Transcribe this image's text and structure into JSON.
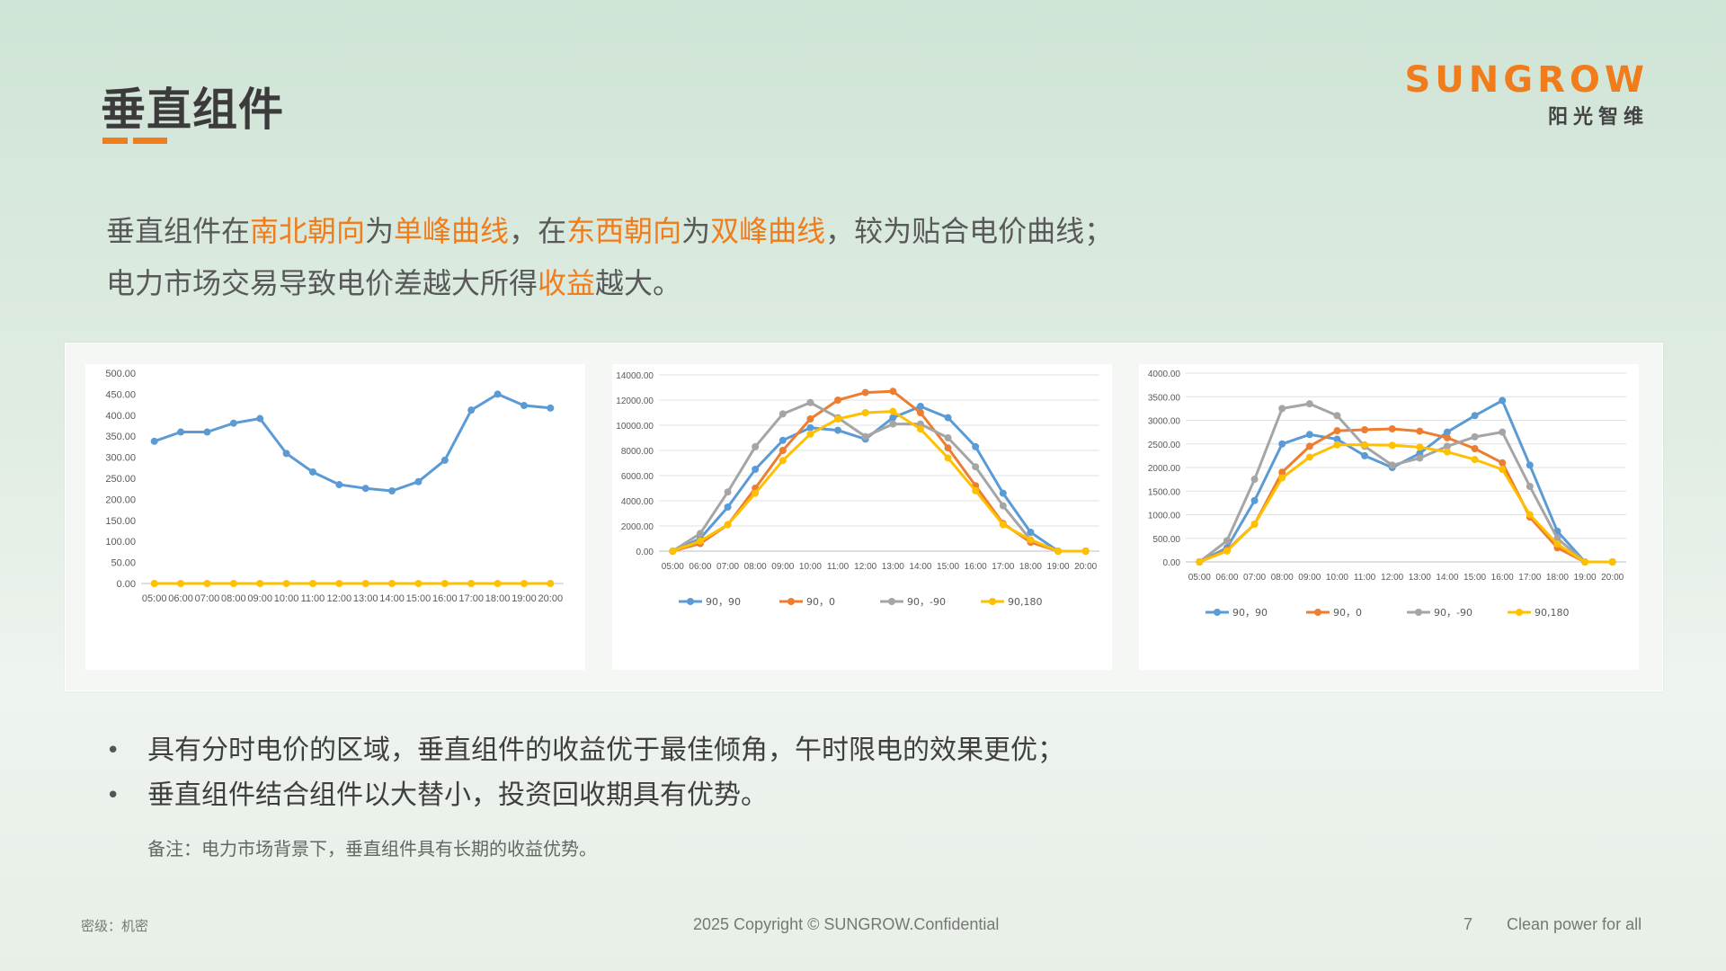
{
  "slide": {
    "title": "垂直组件",
    "intro_line1": [
      {
        "text": "垂直组件在",
        "hl": false
      },
      {
        "text": "南北朝向",
        "hl": true
      },
      {
        "text": "为",
        "hl": false
      },
      {
        "text": "单峰曲线",
        "hl": true
      },
      {
        "text": "，在",
        "hl": false
      },
      {
        "text": "东西朝向",
        "hl": true
      },
      {
        "text": "为",
        "hl": false
      },
      {
        "text": "双峰曲线",
        "hl": true
      },
      {
        "text": "，较为贴合电价曲线；",
        "hl": false
      }
    ],
    "intro_line2": [
      {
        "text": "电力市场交易导致电价差越大所得",
        "hl": false
      },
      {
        "text": "收益",
        "hl": true
      },
      {
        "text": "越大。",
        "hl": false
      }
    ],
    "bullets": [
      "具有分时电价的区域，垂直组件的收益优于最佳倾角，午时限电的效果更优；",
      "垂直组件结合组件以大替小，投资回收期具有优势。"
    ],
    "note": "备注：电力市场背景下，垂直组件具有长期的收益优势。"
  },
  "logo": {
    "word": "SUNGROW",
    "subtitle": "阳光智维"
  },
  "footer": {
    "classification": "密级：机密",
    "copyright": "2025 Copyright © SUNGROW.Confidential",
    "page": "7",
    "tagline": "Clean power for all"
  },
  "colors": {
    "accent": "#f07c1b",
    "blue": "#5b9bd5",
    "orange": "#ed7d31",
    "gray": "#a5a5a5",
    "yellow": "#ffc000"
  },
  "chart_data": [
    {
      "type": "line",
      "x": [
        "05:00",
        "06:00",
        "07:00",
        "08:00",
        "09:00",
        "10:00",
        "11:00",
        "12:00",
        "13:00",
        "14:00",
        "15:00",
        "16:00",
        "17:00",
        "18:00",
        "19:00",
        "20:00"
      ],
      "yticks": [
        "0.00",
        "50.00",
        "100.00",
        "150.00",
        "200.00",
        "250.00",
        "300.00",
        "350.00",
        "400.00",
        "450.00",
        "500.00"
      ],
      "ylim": [
        0,
        500
      ],
      "legend": false,
      "series": [
        {
          "color": "#5b9bd5",
          "values": [
            338,
            360,
            360,
            381,
            392,
            309,
            265,
            235,
            226,
            220,
            242,
            293,
            412,
            450,
            423,
            417
          ]
        },
        {
          "color": "#ffc000",
          "values": [
            0,
            0,
            0,
            0,
            0,
            0,
            0,
            0,
            0,
            0,
            0,
            0,
            0,
            0,
            0,
            0
          ]
        }
      ]
    },
    {
      "type": "line",
      "x": [
        "05:00",
        "06:00",
        "07:00",
        "08:00",
        "09:00",
        "10:00",
        "11:00",
        "12:00",
        "13:00",
        "14:00",
        "15:00",
        "16:00",
        "17:00",
        "18:00",
        "19:00",
        "20:00"
      ],
      "yticks": [
        "0.00",
        "2000.00",
        "4000.00",
        "6000.00",
        "8000.00",
        "10000.00",
        "12000.00",
        "14000.00"
      ],
      "ylim": [
        0,
        14000
      ],
      "legend": true,
      "series": [
        {
          "name": "90，90",
          "color": "#5b9bd5",
          "values": [
            0,
            1000,
            3500,
            6500,
            8800,
            9800,
            9600,
            8900,
            10600,
            11500,
            10600,
            8300,
            4600,
            1500,
            0,
            0
          ]
        },
        {
          "name": "90，0",
          "color": "#ed7d31",
          "values": [
            0,
            600,
            2100,
            5000,
            8000,
            10500,
            12000,
            12600,
            12700,
            11000,
            8200,
            5200,
            2200,
            700,
            0,
            0
          ]
        },
        {
          "name": "90，-90",
          "color": "#a5a5a5",
          "values": [
            0,
            1400,
            4700,
            8300,
            10900,
            11800,
            10600,
            9100,
            10100,
            10100,
            9000,
            6700,
            3600,
            900,
            0,
            0
          ]
        },
        {
          "name": "90,180",
          "color": "#ffc000",
          "values": [
            0,
            800,
            2100,
            4600,
            7200,
            9300,
            10500,
            11000,
            11100,
            9700,
            7400,
            4800,
            2100,
            900,
            0,
            0
          ]
        }
      ]
    },
    {
      "type": "line",
      "x": [
        "05:00",
        "06:00",
        "07:00",
        "08:00",
        "09:00",
        "10:00",
        "11:00",
        "12:00",
        "13:00",
        "14:00",
        "15:00",
        "16:00",
        "17:00",
        "18:00",
        "19:00",
        "20:00"
      ],
      "yticks": [
        "0.00",
        "500.00",
        "1000.00",
        "1500.00",
        "2000.00",
        "2500.00",
        "3000.00",
        "3500.00",
        "4000.00"
      ],
      "ylim": [
        0,
        4000
      ],
      "legend": true,
      "series": [
        {
          "name": "90，90",
          "color": "#5b9bd5",
          "values": [
            0,
            300,
            1300,
            2500,
            2700,
            2600,
            2250,
            2000,
            2300,
            2750,
            3100,
            3420,
            2050,
            650,
            0,
            0
          ]
        },
        {
          "name": "90，0",
          "color": "#ed7d31",
          "values": [
            0,
            250,
            800,
            1900,
            2450,
            2780,
            2800,
            2820,
            2770,
            2630,
            2400,
            2100,
            950,
            300,
            0,
            0
          ]
        },
        {
          "name": "90，-90",
          "color": "#a5a5a5",
          "values": [
            0,
            450,
            1750,
            3250,
            3350,
            3100,
            2450,
            2050,
            2200,
            2450,
            2650,
            2750,
            1600,
            500,
            0,
            0
          ]
        },
        {
          "name": "90,180",
          "color": "#ffc000",
          "values": [
            0,
            230,
            800,
            1780,
            2220,
            2480,
            2480,
            2470,
            2430,
            2330,
            2170,
            1960,
            1000,
            380,
            0,
            0
          ]
        }
      ]
    }
  ]
}
